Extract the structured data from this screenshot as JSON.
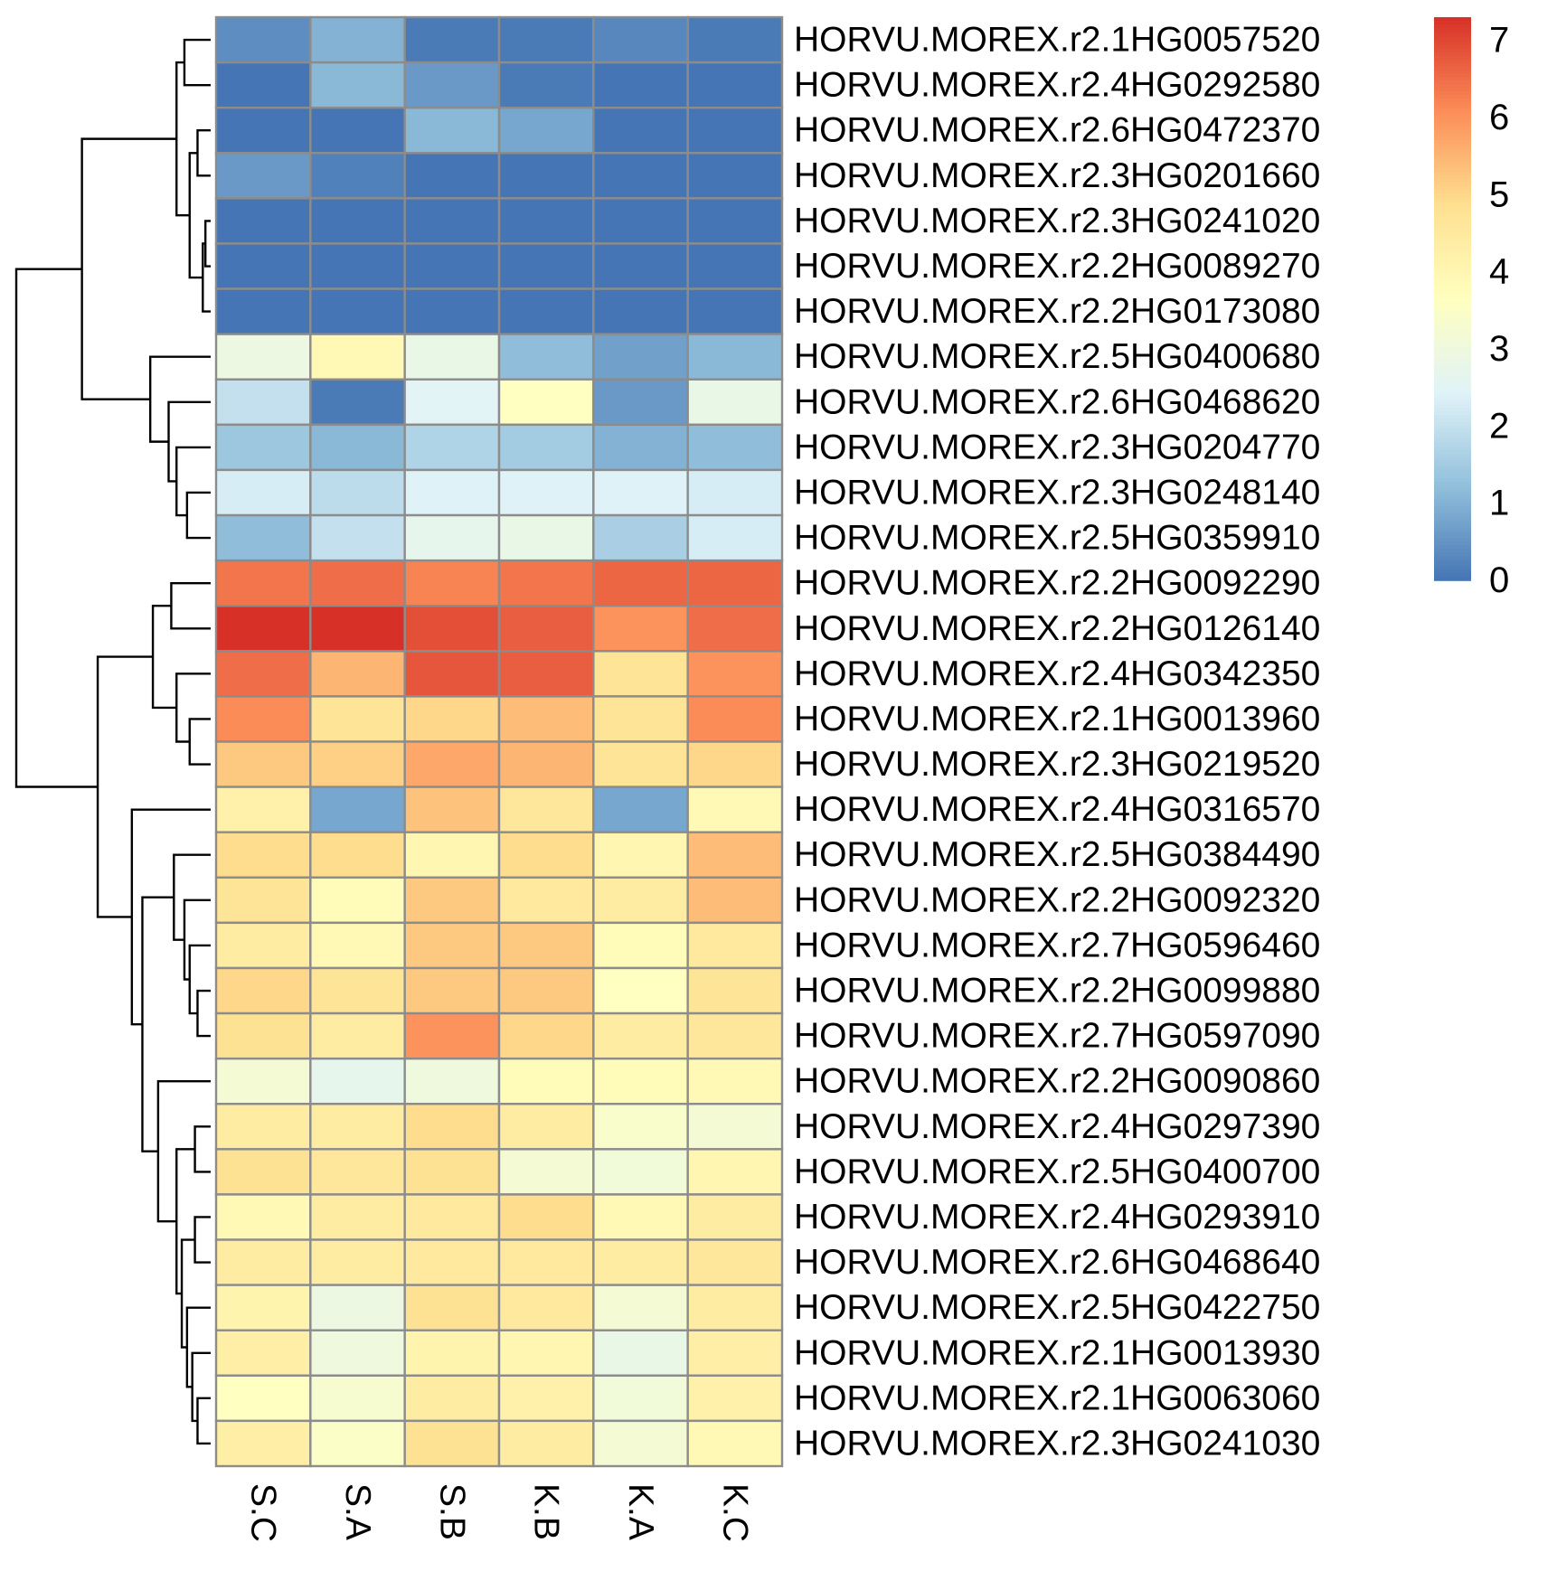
{
  "chart_data": {
    "type": "heatmap",
    "title": "",
    "columns": [
      "S.C",
      "S.A",
      "S.B",
      "K.B",
      "K.A",
      "K.C"
    ],
    "rows": [
      "HORVU.MOREX.r2.1HG0057520",
      "HORVU.MOREX.r2.4HG0292580",
      "HORVU.MOREX.r2.6HG0472370",
      "HORVU.MOREX.r2.3HG0201660",
      "HORVU.MOREX.r2.3HG0241020",
      "HORVU.MOREX.r2.2HG0089270",
      "HORVU.MOREX.r2.2HG0173080",
      "HORVU.MOREX.r2.5HG0400680",
      "HORVU.MOREX.r2.6HG0468620",
      "HORVU.MOREX.r2.3HG0204770",
      "HORVU.MOREX.r2.3HG0248140",
      "HORVU.MOREX.r2.5HG0359910",
      "HORVU.MOREX.r2.2HG0092290",
      "HORVU.MOREX.r2.2HG0126140",
      "HORVU.MOREX.r2.4HG0342350",
      "HORVU.MOREX.r2.1HG0013960",
      "HORVU.MOREX.r2.3HG0219520",
      "HORVU.MOREX.r2.4HG0316570",
      "HORVU.MOREX.r2.5HG0384490",
      "HORVU.MOREX.r2.2HG0092320",
      "HORVU.MOREX.r2.7HG0596460",
      "HORVU.MOREX.r2.2HG0099880",
      "HORVU.MOREX.r2.7HG0597090",
      "HORVU.MOREX.r2.2HG0090860",
      "HORVU.MOREX.r2.4HG0297390",
      "HORVU.MOREX.r2.5HG0400700",
      "HORVU.MOREX.r2.4HG0293910",
      "HORVU.MOREX.r2.6HG0468640",
      "HORVU.MOREX.r2.5HG0422750",
      "HORVU.MOREX.r2.1HG0013930",
      "HORVU.MOREX.r2.1HG0063060",
      "HORVU.MOREX.r2.3HG0241030"
    ],
    "values": [
      [
        0.4,
        1.0,
        0.1,
        0.1,
        0.3,
        0.1
      ],
      [
        0.0,
        1.1,
        0.6,
        0.1,
        0.0,
        0.0
      ],
      [
        0.0,
        0.0,
        1.1,
        0.8,
        0.0,
        0.0
      ],
      [
        0.6,
        0.2,
        0.0,
        0.0,
        0.0,
        0.0
      ],
      [
        0.0,
        0.0,
        0.0,
        0.0,
        0.0,
        0.0
      ],
      [
        0.0,
        0.0,
        0.0,
        0.0,
        0.0,
        0.0
      ],
      [
        0.0,
        0.0,
        0.0,
        0.0,
        0.0,
        0.0
      ],
      [
        2.9,
        3.9,
        2.8,
        1.2,
        0.7,
        1.1
      ],
      [
        2.0,
        0.1,
        2.5,
        3.6,
        0.6,
        2.8
      ],
      [
        1.4,
        1.1,
        1.7,
        1.5,
        1.0,
        1.2
      ],
      [
        2.3,
        1.9,
        2.4,
        2.4,
        2.4,
        2.3
      ],
      [
        1.2,
        2.0,
        2.7,
        2.8,
        1.6,
        2.3
      ],
      [
        6.4,
        6.5,
        6.2,
        6.4,
        6.6,
        6.6
      ],
      [
        7.3,
        7.3,
        6.9,
        6.7,
        6.0,
        6.5
      ],
      [
        6.5,
        5.5,
        6.8,
        6.7,
        4.7,
        6.0
      ],
      [
        6.1,
        4.7,
        5.0,
        5.4,
        4.7,
        6.1
      ],
      [
        5.2,
        5.1,
        5.7,
        5.5,
        4.7,
        5.0
      ],
      [
        4.2,
        0.8,
        5.3,
        4.6,
        0.8,
        3.9
      ],
      [
        4.9,
        4.9,
        4.0,
        4.9,
        4.0,
        5.4
      ],
      [
        4.7,
        3.8,
        5.2,
        4.5,
        4.4,
        5.4
      ],
      [
        4.4,
        3.9,
        5.2,
        5.2,
        3.8,
        4.5
      ],
      [
        5.0,
        4.7,
        5.2,
        5.2,
        3.6,
        4.7
      ],
      [
        4.8,
        4.4,
        6.0,
        5.0,
        4.4,
        4.6
      ],
      [
        3.2,
        2.7,
        3.0,
        3.8,
        3.8,
        3.9
      ],
      [
        4.4,
        4.4,
        4.9,
        4.4,
        3.4,
        3.2
      ],
      [
        4.8,
        4.6,
        4.8,
        3.2,
        3.1,
        4.0
      ],
      [
        3.9,
        4.4,
        4.5,
        4.9,
        3.9,
        4.4
      ],
      [
        4.4,
        4.4,
        4.5,
        4.5,
        4.4,
        4.6
      ],
      [
        4.1,
        2.9,
        4.8,
        4.5,
        3.2,
        4.4
      ],
      [
        4.3,
        3.0,
        4.1,
        4.0,
        2.8,
        4.3
      ],
      [
        3.6,
        3.3,
        4.4,
        4.2,
        3.1,
        4.2
      ],
      [
        4.3,
        3.5,
        4.8,
        4.4,
        3.2,
        3.9
      ]
    ],
    "color_scale": {
      "min": 0,
      "max": 7.3,
      "stops": [
        "#4575B4",
        "#91BFDB",
        "#E0F3F8",
        "#FFFFBF",
        "#FEE090",
        "#FC8D59",
        "#D73027"
      ]
    },
    "legend": {
      "ticks": [
        0,
        1,
        2,
        3,
        4,
        5,
        6,
        7
      ],
      "tick_labels": [
        "0",
        "1",
        "2",
        "3",
        "4",
        "5",
        "6",
        "7"
      ]
    },
    "row_dendrogram": {
      "merges": [
        [
          -5,
          -6
        ],
        [
          -7,
          1
        ],
        [
          -3,
          -4
        ],
        [
          2,
          3
        ],
        [
          -1,
          -2
        ],
        [
          4,
          5
        ],
        [
          -11,
          -12
        ],
        [
          -10,
          7
        ],
        [
          -9,
          8
        ],
        [
          -8,
          9
        ],
        [
          6,
          10
        ],
        [
          -16,
          -17
        ],
        [
          -15,
          12
        ],
        [
          -13,
          -14
        ],
        [
          13,
          14
        ],
        [
          -22,
          -23
        ],
        [
          -21,
          16
        ],
        [
          -20,
          17
        ],
        [
          -19,
          18
        ],
        [
          -31,
          -32
        ],
        [
          -30,
          20
        ],
        [
          -29,
          21
        ],
        [
          -27,
          -28
        ],
        [
          22,
          23
        ],
        [
          -25,
          -26
        ],
        [
          24,
          25
        ],
        [
          -24,
          26
        ],
        [
          19,
          27
        ],
        [
          -18,
          28
        ],
        [
          15,
          29
        ],
        [
          11,
          30
        ]
      ],
      "heights": [
        0.2,
        0.3,
        0.5,
        0.8,
        1.0,
        1.3,
        0.9,
        1.3,
        1.6,
        2.3,
        4.9,
        0.8,
        1.3,
        1.5,
        2.2,
        0.5,
        0.8,
        1.0,
        1.4,
        0.5,
        0.7,
        0.9,
        0.6,
        1.1,
        0.6,
        1.3,
        2.0,
        2.6,
        3.0,
        4.3,
        7.4
      ]
    }
  }
}
